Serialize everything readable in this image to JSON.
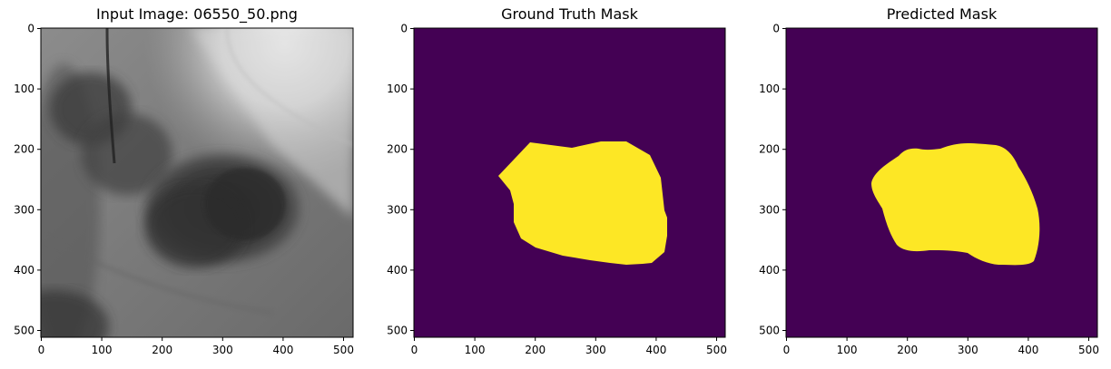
{
  "figure": {
    "panels": [
      {
        "title": "Input Image: 06550_50.png",
        "kind": "grayscale-image",
        "x_ticks": [
          "0",
          "100",
          "200",
          "300",
          "400",
          "500"
        ],
        "y_ticks": [
          "0",
          "100",
          "200",
          "300",
          "400",
          "500"
        ]
      },
      {
        "title": "Ground Truth Mask",
        "kind": "mask",
        "x_ticks": [
          "0",
          "100",
          "200",
          "300",
          "400",
          "500"
        ],
        "y_ticks": [
          "0",
          "100",
          "200",
          "300",
          "400",
          "500"
        ]
      },
      {
        "title": "Predicted Mask",
        "kind": "mask",
        "x_ticks": [
          "0",
          "100",
          "200",
          "300",
          "400",
          "500"
        ],
        "y_ticks": [
          "0",
          "100",
          "200",
          "300",
          "400",
          "500"
        ]
      }
    ],
    "colors": {
      "mask_background": "#440154",
      "mask_foreground": "#fde725"
    }
  }
}
